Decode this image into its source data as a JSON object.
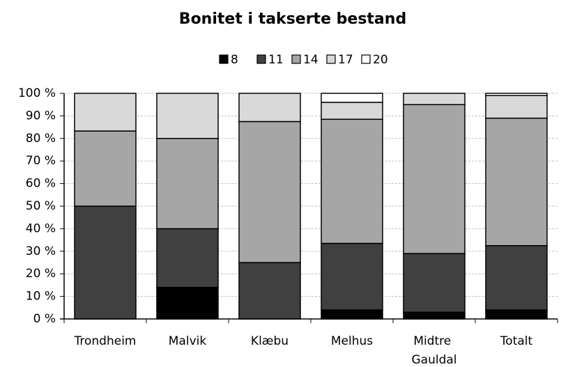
{
  "chart_data": {
    "type": "stacked_bar_percent",
    "title": "Bonitet i takserte bestand",
    "categories": [
      "Trondheim",
      "Malvik",
      "Klæbu",
      "Melhus",
      "Midtre Gauldal",
      "Totalt"
    ],
    "series": [
      {
        "name": "8",
        "color": "#000000",
        "values": [
          0,
          14,
          0,
          4,
          3,
          4
        ]
      },
      {
        "name": "11",
        "color": "#404040",
        "values": [
          50,
          26,
          25,
          29.5,
          26,
          28.5
        ]
      },
      {
        "name": "14",
        "color": "#a6a6a6",
        "values": [
          33.3,
          40,
          62.5,
          55,
          66,
          56.5
        ]
      },
      {
        "name": "17",
        "color": "#d9d9d9",
        "values": [
          16.7,
          20,
          12.5,
          7.5,
          5,
          10
        ]
      },
      {
        "name": "20",
        "color": "#ffffff",
        "values": [
          0,
          0,
          0,
          4,
          0,
          1
        ]
      }
    ],
    "ylim": [
      0,
      100
    ],
    "yticks": [
      {
        "value": 0,
        "label": "0 %"
      },
      {
        "value": 10,
        "label": "10 %"
      },
      {
        "value": 20,
        "label": "20 %"
      },
      {
        "value": 30,
        "label": "30 %"
      },
      {
        "value": 40,
        "label": "40 %"
      },
      {
        "value": 50,
        "label": "50 %"
      },
      {
        "value": 60,
        "label": "60 %"
      },
      {
        "value": 70,
        "label": "70 %"
      },
      {
        "value": 80,
        "label": "80 %"
      },
      {
        "value": 90,
        "label": "90 %"
      },
      {
        "value": 100,
        "label": "100 %"
      }
    ],
    "grid": true,
    "legend": "top"
  }
}
